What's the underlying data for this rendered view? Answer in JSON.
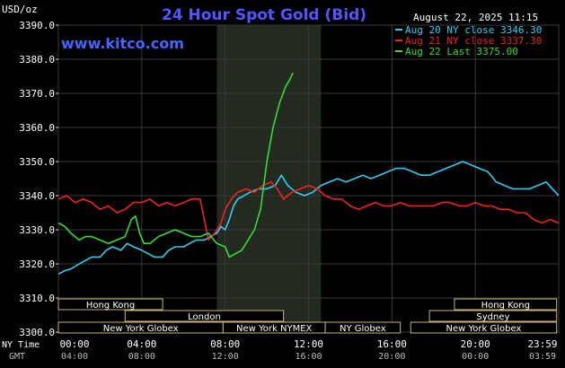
{
  "chart_data": {
    "type": "line",
    "title": "24 Hour Spot Gold (Bid)",
    "website": "www.kitco.com",
    "timestamp": "August 22, 2025 11:15",
    "ylabel": "USD/oz",
    "ylim": [
      3300,
      3390
    ],
    "yticks": [
      3300.0,
      3310.0,
      3320.0,
      3330.0,
      3340.0,
      3350.0,
      3360.0,
      3370.0,
      3380.0,
      3390.0
    ],
    "ytick_labels": [
      "3300.0",
      "3310.0",
      "3320.0",
      "3330.0",
      "3340.0",
      "3350.0",
      "3360.0",
      "3370.0",
      "3380.0",
      "3390.0"
    ],
    "xlim": [
      0,
      24
    ],
    "x_unit": "hours",
    "xticks": [
      0,
      4,
      8,
      12,
      16,
      20,
      24
    ],
    "ny_time_label": "NY Time",
    "gmt_label": "GMT",
    "ny_time_ticks": [
      "00:00",
      "04:00",
      "08:00",
      "12:00",
      "16:00",
      "20:00",
      "23:59"
    ],
    "gmt_ticks": [
      "04:00",
      "08:00",
      "12:00",
      "16:00",
      "20:00",
      "00:00",
      "03:59"
    ],
    "grid": true,
    "highlight_range": [
      7.6,
      12.6
    ],
    "legend_position": "top-right",
    "legend": [
      {
        "text": "Aug 20 NY close 3346.30",
        "color": "#33ccee"
      },
      {
        "text": "Aug 21 NY close 3337.30",
        "color": "#ee2222"
      },
      {
        "text": "Aug 22 Last 3375.00",
        "color": "#33dd33"
      }
    ],
    "sessions": [
      {
        "label": "Hong Kong",
        "start": 0.0,
        "end": 5.0,
        "row": 0
      },
      {
        "label": "London",
        "start": 3.2,
        "end": 10.8,
        "row": 1
      },
      {
        "label": "New York Globex",
        "start": 0.0,
        "end": 7.9,
        "row": 2
      },
      {
        "label": "New York NYMEX",
        "start": 7.9,
        "end": 12.8,
        "row": 2
      },
      {
        "label": "NY Globex",
        "start": 12.8,
        "end": 16.4,
        "row": 2
      },
      {
        "label": "Hong Kong",
        "start": 19.0,
        "end": 23.9,
        "row": 0
      },
      {
        "label": "Sydney",
        "start": 17.8,
        "end": 23.9,
        "row": 1
      },
      {
        "label": "New York Globex",
        "start": 16.9,
        "end": 23.9,
        "row": 2
      }
    ],
    "series": [
      {
        "name": "Aug 20 NY close 3346.30",
        "color": "#33ccee",
        "points": [
          [
            0,
            3317
          ],
          [
            0.3,
            3318
          ],
          [
            0.6,
            3318.5
          ],
          [
            1,
            3320
          ],
          [
            1.3,
            3321
          ],
          [
            1.6,
            3322
          ],
          [
            2,
            3322
          ],
          [
            2.3,
            3324
          ],
          [
            2.6,
            3325
          ],
          [
            3,
            3324
          ],
          [
            3.3,
            3326
          ],
          [
            3.6,
            3325
          ],
          [
            4,
            3324
          ],
          [
            4.3,
            3323
          ],
          [
            4.6,
            3322
          ],
          [
            5,
            3322
          ],
          [
            5.3,
            3324
          ],
          [
            5.6,
            3325
          ],
          [
            6,
            3325
          ],
          [
            6.3,
            3326
          ],
          [
            6.6,
            3327
          ],
          [
            7,
            3327
          ],
          [
            7.3,
            3328
          ],
          [
            7.6,
            3329
          ],
          [
            7.8,
            3331
          ],
          [
            8,
            3330
          ],
          [
            8.2,
            3333
          ],
          [
            8.4,
            3337
          ],
          [
            8.6,
            3339
          ],
          [
            8.9,
            3340
          ],
          [
            9.2,
            3341
          ],
          [
            9.6,
            3342
          ],
          [
            10,
            3342
          ],
          [
            10.4,
            3343
          ],
          [
            10.7,
            3346
          ],
          [
            11,
            3343
          ],
          [
            11.4,
            3341
          ],
          [
            11.8,
            3340
          ],
          [
            12.2,
            3341
          ],
          [
            12.6,
            3343
          ],
          [
            13,
            3344
          ],
          [
            13.4,
            3345
          ],
          [
            13.8,
            3344
          ],
          [
            14.2,
            3345
          ],
          [
            14.6,
            3346
          ],
          [
            15,
            3345
          ],
          [
            15.4,
            3346
          ],
          [
            15.8,
            3347
          ],
          [
            16.2,
            3348
          ],
          [
            16.6,
            3348
          ],
          [
            17,
            3347
          ],
          [
            17.4,
            3346
          ],
          [
            17.8,
            3346
          ],
          [
            18.2,
            3347
          ],
          [
            18.6,
            3348
          ],
          [
            19,
            3349
          ],
          [
            19.4,
            3350
          ],
          [
            19.8,
            3349
          ],
          [
            20.2,
            3348
          ],
          [
            20.6,
            3347
          ],
          [
            21,
            3344
          ],
          [
            21.4,
            3343
          ],
          [
            21.8,
            3342
          ],
          [
            22.2,
            3342
          ],
          [
            22.6,
            3342
          ],
          [
            23,
            3343
          ],
          [
            23.4,
            3344
          ],
          [
            23.7,
            3342
          ],
          [
            24,
            3340
          ]
        ]
      },
      {
        "name": "Aug 21 NY close 3337.30",
        "color": "#ee2222",
        "points": [
          [
            0,
            3339
          ],
          [
            0.4,
            3340
          ],
          [
            0.8,
            3338
          ],
          [
            1.2,
            3339
          ],
          [
            1.6,
            3338
          ],
          [
            2,
            3336
          ],
          [
            2.4,
            3337
          ],
          [
            2.8,
            3335
          ],
          [
            3.2,
            3336
          ],
          [
            3.6,
            3338
          ],
          [
            4,
            3338
          ],
          [
            4.4,
            3339
          ],
          [
            4.8,
            3337
          ],
          [
            5.2,
            3338
          ],
          [
            5.6,
            3337
          ],
          [
            6,
            3338
          ],
          [
            6.4,
            3339
          ],
          [
            6.8,
            3339
          ],
          [
            7,
            3333
          ],
          [
            7.2,
            3327
          ],
          [
            7.5,
            3329
          ],
          [
            7.8,
            3332
          ],
          [
            8,
            3336
          ],
          [
            8.3,
            3339
          ],
          [
            8.6,
            3341
          ],
          [
            9,
            3342
          ],
          [
            9.4,
            3341
          ],
          [
            9.8,
            3343
          ],
          [
            10.2,
            3344
          ],
          [
            10.5,
            3342
          ],
          [
            10.8,
            3339
          ],
          [
            11.2,
            3341
          ],
          [
            11.6,
            3342
          ],
          [
            12,
            3343
          ],
          [
            12.4,
            3342
          ],
          [
            12.8,
            3340
          ],
          [
            13.2,
            3339
          ],
          [
            13.6,
            3339
          ],
          [
            14,
            3337
          ],
          [
            14.4,
            3336
          ],
          [
            14.8,
            3337
          ],
          [
            15.2,
            3338
          ],
          [
            15.6,
            3337
          ],
          [
            16,
            3337
          ],
          [
            16.4,
            3338
          ],
          [
            16.8,
            3337
          ],
          [
            17.2,
            3337
          ],
          [
            17.6,
            3337
          ],
          [
            18,
            3337
          ],
          [
            18.4,
            3338
          ],
          [
            18.8,
            3338
          ],
          [
            19.2,
            3337
          ],
          [
            19.6,
            3337
          ],
          [
            20,
            3338
          ],
          [
            20.4,
            3337
          ],
          [
            20.8,
            3337
          ],
          [
            21.2,
            3336
          ],
          [
            21.6,
            3336
          ],
          [
            22,
            3335
          ],
          [
            22.4,
            3335
          ],
          [
            22.8,
            3333
          ],
          [
            23.2,
            3332
          ],
          [
            23.6,
            3333
          ],
          [
            24,
            3332
          ]
        ]
      },
      {
        "name": "Aug 22 Last 3375.00",
        "color": "#33dd33",
        "points": [
          [
            0,
            3332
          ],
          [
            0.3,
            3331
          ],
          [
            0.6,
            3329
          ],
          [
            1,
            3327
          ],
          [
            1.3,
            3328
          ],
          [
            1.6,
            3328
          ],
          [
            2,
            3327
          ],
          [
            2.4,
            3326
          ],
          [
            2.8,
            3327
          ],
          [
            3.2,
            3328
          ],
          [
            3.5,
            3333
          ],
          [
            3.7,
            3334
          ],
          [
            3.9,
            3329
          ],
          [
            4.1,
            3326
          ],
          [
            4.4,
            3326
          ],
          [
            4.8,
            3328
          ],
          [
            5.2,
            3329
          ],
          [
            5.6,
            3330
          ],
          [
            6,
            3329
          ],
          [
            6.4,
            3328
          ],
          [
            6.8,
            3328
          ],
          [
            7.2,
            3329
          ],
          [
            7.6,
            3326
          ],
          [
            8,
            3325
          ],
          [
            8.2,
            3322
          ],
          [
            8.5,
            3323
          ],
          [
            8.8,
            3324
          ],
          [
            9.1,
            3327
          ],
          [
            9.4,
            3330
          ],
          [
            9.7,
            3336
          ],
          [
            10,
            3350
          ],
          [
            10.3,
            3360
          ],
          [
            10.6,
            3367
          ],
          [
            10.9,
            3372
          ],
          [
            11.1,
            3374
          ],
          [
            11.25,
            3376
          ]
        ]
      }
    ]
  }
}
